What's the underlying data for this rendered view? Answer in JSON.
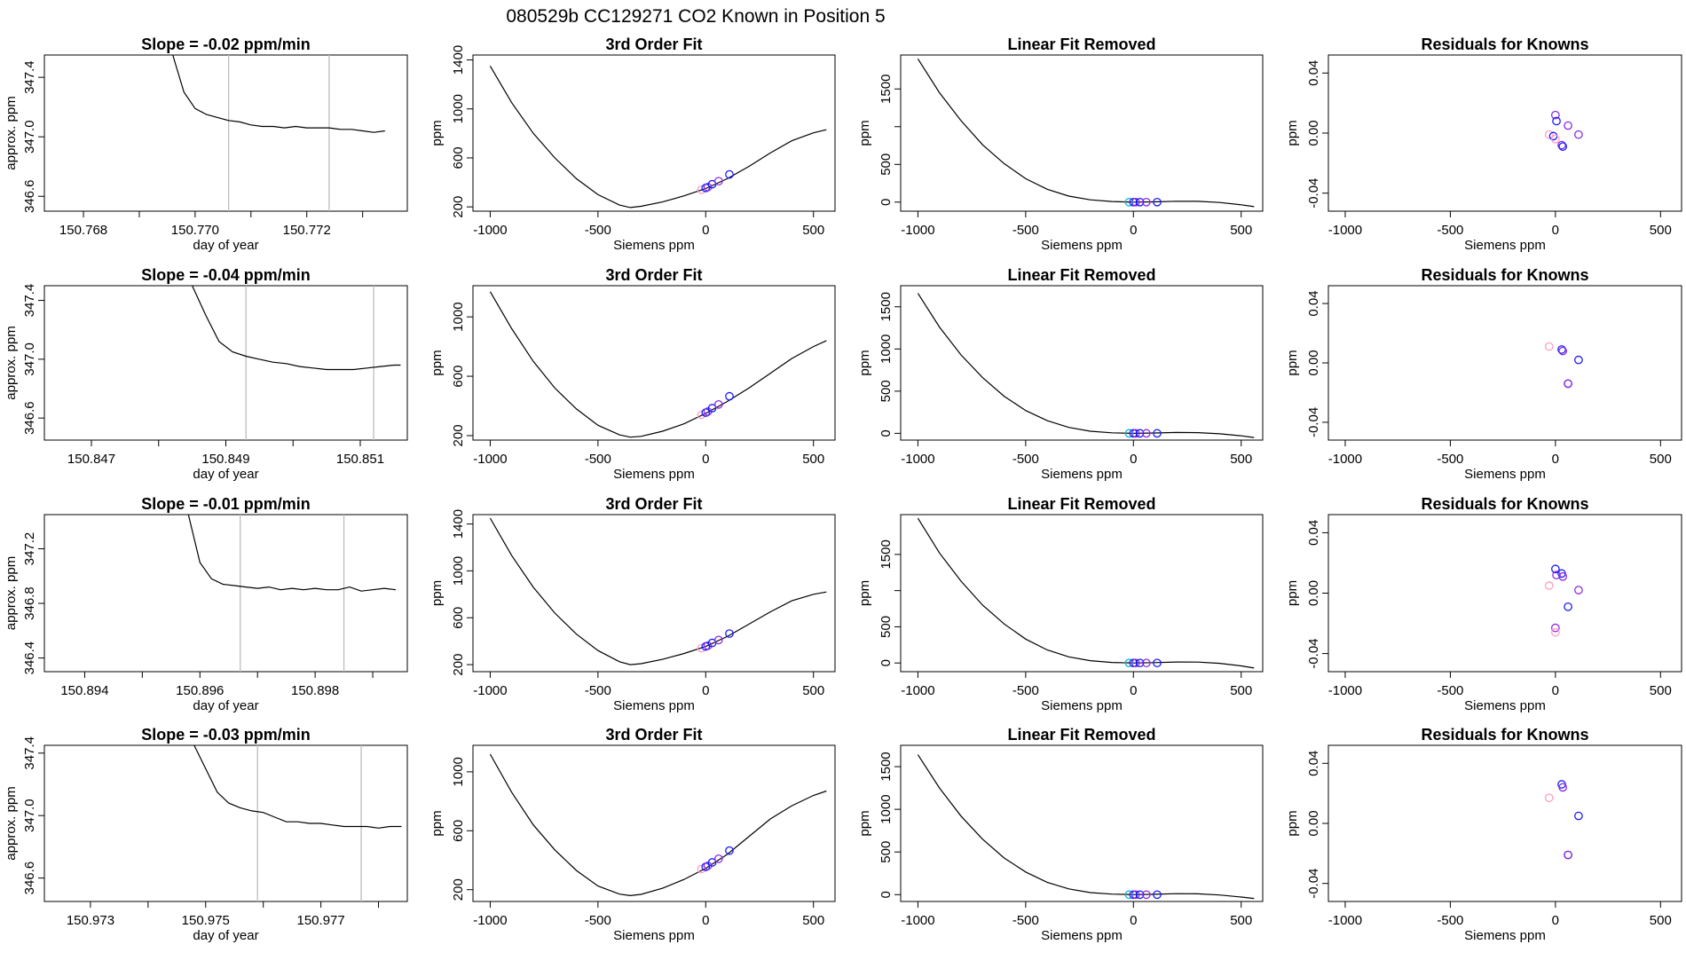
{
  "figure_title": "080529b      CC129271    CO2 Known in Position  5",
  "colors": {
    "curve": "#000000",
    "point_blue": "#1a1aff",
    "point_purple": "#8a2be2",
    "point_pink": "#ff9ec7",
    "point_cyan": "#00bcd4",
    "guide": "#bdbdbd"
  },
  "chart_data": [
    {
      "type": "line",
      "title": "Slope =  -0.02  ppm/min",
      "xlabel": "day of year",
      "ylabel": "approx. ppm",
      "xlim": [
        150.7673,
        150.7738
      ],
      "ylim": [
        346.5,
        347.55
      ],
      "xticks": [
        150.768,
        150.77,
        150.772
      ],
      "xtick_labels": [
        "150.768",
        "150.770",
        "150.772"
      ],
      "xticks_minor": [
        150.769,
        150.771,
        150.773
      ],
      "yticks": [
        346.6,
        347.0,
        347.4
      ],
      "ytick_labels": [
        "346.6",
        "347.0",
        "347.4"
      ],
      "vlines": [
        150.7706,
        150.7724
      ],
      "x": [
        150.7696,
        150.7698,
        150.77,
        150.7702,
        150.7704,
        150.7706,
        150.7708,
        150.771,
        150.7712,
        150.7714,
        150.7716,
        150.7718,
        150.772,
        150.7722,
        150.7724,
        150.7726,
        150.7728,
        150.773,
        150.7732,
        150.7734
      ],
      "y": [
        347.55,
        347.3,
        347.19,
        347.15,
        347.13,
        347.11,
        347.1,
        347.08,
        347.07,
        347.07,
        347.06,
        347.07,
        347.06,
        347.06,
        347.06,
        347.05,
        347.05,
        347.04,
        347.03,
        347.04
      ]
    },
    {
      "type": "line",
      "title": "3rd Order Fit",
      "xlabel": "Siemens ppm",
      "ylabel": "ppm",
      "xlim": [
        -1080,
        600
      ],
      "ylim": [
        165,
        1440
      ],
      "xticks": [
        -1000,
        -500,
        0,
        500
      ],
      "xtick_labels": [
        "-1000",
        "-500",
        "0",
        "500"
      ],
      "yticks": [
        200,
        600,
        1000,
        1400
      ],
      "ytick_labels": [
        "200",
        "600",
        "1000",
        "1400"
      ],
      "x": [
        -1000,
        -900,
        -800,
        -700,
        -600,
        -500,
        -400,
        -350,
        -300,
        -200,
        -100,
        0,
        100,
        200,
        300,
        400,
        500,
        560
      ],
      "y": [
        1350,
        1050,
        800,
        600,
        430,
        300,
        215,
        195,
        205,
        240,
        290,
        350,
        430,
        530,
        640,
        740,
        805,
        830
      ],
      "points_x": [
        -20,
        0,
        10,
        30,
        60,
        110
      ],
      "points_y": [
        340,
        355,
        362,
        385,
        410,
        465
      ]
    },
    {
      "type": "line",
      "title": "Linear Fit Removed",
      "xlabel": "Siemens ppm",
      "ylabel": "ppm",
      "xlim": [
        -1080,
        600
      ],
      "ylim": [
        -120,
        1950
      ],
      "xticks": [
        -1000,
        -500,
        0,
        500
      ],
      "xtick_labels": [
        "-1000",
        "-500",
        "0",
        "500"
      ],
      "yticks": [
        0,
        500,
        1500
      ],
      "ytick_labels": [
        "0",
        "500",
        "1500"
      ],
      "yticks_minor": [
        1000
      ],
      "x": [
        -1000,
        -900,
        -800,
        -700,
        -600,
        -500,
        -400,
        -300,
        -200,
        -100,
        0,
        100,
        200,
        300,
        400,
        500,
        560
      ],
      "y": [
        1900,
        1450,
        1080,
        760,
        510,
        310,
        170,
        80,
        30,
        8,
        0,
        4,
        12,
        10,
        -5,
        -35,
        -60
      ],
      "points_x": [
        -20,
        0,
        10,
        30,
        60,
        110
      ],
      "points_y": [
        0,
        0,
        0,
        0,
        0,
        0
      ]
    },
    {
      "type": "scatter",
      "title": "Residuals for Knowns",
      "xlabel": "Siemens ppm",
      "ylabel": "ppm",
      "xlim": [
        -1080,
        600
      ],
      "ylim": [
        -0.052,
        0.052
      ],
      "xticks": [
        -1000,
        -500,
        0,
        500
      ],
      "xtick_labels": [
        "-1000",
        "-500",
        "0",
        "500"
      ],
      "yticks": [
        -0.04,
        0.0,
        0.04
      ],
      "ytick_labels": [
        "-0.04",
        "0.00",
        "0.04"
      ],
      "points_x": [
        -30,
        -10,
        0,
        5,
        30,
        35,
        60,
        110,
        0
      ],
      "points_y": [
        -0.001,
        -0.002,
        0.012,
        0.008,
        -0.008,
        -0.009,
        0.005,
        -0.001,
        -0.004
      ]
    },
    {
      "type": "line",
      "title": "Slope =  -0.04  ppm/min",
      "xlabel": "day of year",
      "ylabel": "approx. ppm",
      "xlim": [
        150.8463,
        150.8517
      ],
      "ylim": [
        346.45,
        347.5
      ],
      "xticks": [
        150.847,
        150.849,
        150.851
      ],
      "xtick_labels": [
        "150.847",
        "150.849",
        "150.851"
      ],
      "xticks_minor": [
        150.848,
        150.85
      ],
      "yticks": [
        346.6,
        347.0,
        347.4
      ],
      "ytick_labels": [
        "346.6",
        "347.0",
        "347.4"
      ],
      "vlines": [
        150.8493,
        150.8512
      ],
      "x": [
        150.8485,
        150.8487,
        150.8489,
        150.8491,
        150.8493,
        150.8495,
        150.8497,
        150.8499,
        150.8501,
        150.8503,
        150.8505,
        150.8507,
        150.8509,
        150.8511,
        150.8513,
        150.8515,
        150.8516
      ],
      "y": [
        347.5,
        347.3,
        347.12,
        347.05,
        347.02,
        347.0,
        346.98,
        346.97,
        346.95,
        346.94,
        346.93,
        346.93,
        346.93,
        346.94,
        346.95,
        346.96,
        346.96
      ]
    },
    {
      "type": "line",
      "title": "3rd Order Fit",
      "xlabel": "Siemens ppm",
      "ylabel": "ppm",
      "xlim": [
        -1080,
        600
      ],
      "ylim": [
        170,
        1210
      ],
      "xticks": [
        -1000,
        -500,
        0,
        500
      ],
      "xtick_labels": [
        "-1000",
        "-500",
        "0",
        "500"
      ],
      "yticks": [
        200,
        600,
        1000
      ],
      "ytick_labels": [
        "200",
        "600",
        "1000"
      ],
      "x": [
        -1000,
        -900,
        -800,
        -700,
        -600,
        -500,
        -400,
        -350,
        -300,
        -200,
        -100,
        0,
        100,
        200,
        300,
        400,
        500,
        560
      ],
      "y": [
        1170,
        920,
        700,
        520,
        380,
        270,
        205,
        190,
        195,
        230,
        280,
        350,
        430,
        520,
        620,
        720,
        800,
        840
      ],
      "points_x": [
        -20,
        0,
        10,
        30,
        60,
        110
      ],
      "points_y": [
        340,
        355,
        362,
        385,
        410,
        465
      ]
    },
    {
      "type": "line",
      "title": "Linear Fit Removed",
      "xlabel": "Siemens ppm",
      "ylabel": "ppm",
      "xlim": [
        -1080,
        600
      ],
      "ylim": [
        -80,
        1750
      ],
      "xticks": [
        -1000,
        -500,
        0,
        500
      ],
      "xtick_labels": [
        "-1000",
        "-500",
        "0",
        "500"
      ],
      "yticks": [
        0,
        500,
        1000,
        1500
      ],
      "ytick_labels": [
        "0",
        "500",
        "1000",
        "1500"
      ],
      "x": [
        -1000,
        -900,
        -800,
        -700,
        -600,
        -500,
        -400,
        -300,
        -200,
        -100,
        0,
        100,
        200,
        300,
        400,
        500,
        560
      ],
      "y": [
        1660,
        1260,
        930,
        660,
        440,
        270,
        150,
        70,
        25,
        6,
        0,
        4,
        10,
        8,
        -5,
        -30,
        -50
      ],
      "points_x": [
        -20,
        0,
        10,
        30,
        60,
        110
      ],
      "points_y": [
        0,
        0,
        0,
        0,
        0,
        0
      ]
    },
    {
      "type": "scatter",
      "title": "Residuals for Knowns",
      "xlabel": "Siemens ppm",
      "ylabel": "ppm",
      "xlim": [
        -1080,
        600
      ],
      "ylim": [
        -0.052,
        0.052
      ],
      "xticks": [
        -1000,
        -500,
        0,
        500
      ],
      "xtick_labels": [
        "-1000",
        "-500",
        "0",
        "500"
      ],
      "yticks": [
        -0.04,
        0.0,
        0.04
      ],
      "ytick_labels": [
        "-0.04",
        "0.00",
        "0.04"
      ],
      "points_x": [
        -30,
        30,
        35,
        60,
        60,
        110
      ],
      "points_y": [
        0.011,
        0.009,
        0.008,
        -0.014,
        -0.014,
        0.002
      ]
    },
    {
      "type": "line",
      "title": "Slope =  -0.01  ppm/min",
      "xlabel": "day of year",
      "ylabel": "approx. ppm",
      "xlim": [
        150.8933,
        150.8996
      ],
      "ylim": [
        346.3,
        347.45
      ],
      "xticks": [
        150.894,
        150.896,
        150.898
      ],
      "xtick_labels": [
        "150.894",
        "150.896",
        "150.898"
      ],
      "xticks_minor": [
        150.895,
        150.897,
        150.899
      ],
      "yticks": [
        346.4,
        346.8,
        347.2
      ],
      "ytick_labels": [
        "346.4",
        "346.8",
        "347.2"
      ],
      "vlines": [
        150.8967,
        150.8985
      ],
      "x": [
        150.8958,
        150.896,
        150.8962,
        150.8964,
        150.8966,
        150.8968,
        150.897,
        150.8972,
        150.8974,
        150.8976,
        150.8978,
        150.898,
        150.8982,
        150.8984,
        150.8986,
        150.8988,
        150.899,
        150.8992,
        150.8994
      ],
      "y": [
        347.45,
        347.1,
        346.98,
        346.94,
        346.93,
        346.92,
        346.91,
        346.92,
        346.9,
        346.91,
        346.9,
        346.91,
        346.9,
        346.9,
        346.92,
        346.89,
        346.9,
        346.91,
        346.9
      ]
    },
    {
      "type": "line",
      "title": "3rd Order Fit",
      "xlabel": "Siemens ppm",
      "ylabel": "ppm",
      "xlim": [
        -1080,
        600
      ],
      "ylim": [
        140,
        1480
      ],
      "xticks": [
        -1000,
        -500,
        0,
        500
      ],
      "xtick_labels": [
        "-1000",
        "-500",
        "0",
        "500"
      ],
      "yticks": [
        200,
        600,
        1000,
        1400
      ],
      "ytick_labels": [
        "200",
        "600",
        "1000",
        "1400"
      ],
      "x": [
        -1000,
        -900,
        -800,
        -700,
        -600,
        -500,
        -400,
        -350,
        -300,
        -200,
        -100,
        0,
        100,
        200,
        300,
        400,
        500,
        560
      ],
      "y": [
        1450,
        1130,
        860,
        640,
        460,
        320,
        225,
        200,
        208,
        245,
        295,
        355,
        440,
        545,
        650,
        745,
        800,
        820
      ],
      "points_x": [
        -20,
        0,
        10,
        30,
        60,
        110
      ],
      "points_y": [
        340,
        355,
        362,
        385,
        410,
        465
      ]
    },
    {
      "type": "line",
      "title": "Linear Fit Removed",
      "xlabel": "Siemens ppm",
      "ylabel": "ppm",
      "xlim": [
        -1080,
        600
      ],
      "ylim": [
        -120,
        2050
      ],
      "xticks": [
        -1000,
        -500,
        0,
        500
      ],
      "xtick_labels": [
        "-1000",
        "-500",
        "0",
        "500"
      ],
      "yticks": [
        0,
        500,
        1500
      ],
      "ytick_labels": [
        "0",
        "500",
        "1500"
      ],
      "yticks_minor": [
        1000
      ],
      "x": [
        -1000,
        -900,
        -800,
        -700,
        -600,
        -500,
        -400,
        -300,
        -200,
        -100,
        0,
        100,
        200,
        300,
        400,
        500,
        560
      ],
      "y": [
        2000,
        1520,
        1130,
        800,
        540,
        330,
        180,
        85,
        32,
        8,
        0,
        5,
        14,
        12,
        -5,
        -40,
        -70
      ],
      "points_x": [
        -20,
        0,
        10,
        30,
        60,
        110
      ],
      "points_y": [
        0,
        0,
        0,
        0,
        0,
        0
      ]
    },
    {
      "type": "scatter",
      "title": "Residuals for Knowns",
      "xlabel": "Siemens ppm",
      "ylabel": "ppm",
      "xlim": [
        -1080,
        600
      ],
      "ylim": [
        -0.052,
        0.052
      ],
      "xticks": [
        -1000,
        -500,
        0,
        500
      ],
      "xtick_labels": [
        "-1000",
        "-500",
        "0",
        "500"
      ],
      "yticks": [
        -0.04,
        0.0,
        0.04
      ],
      "ytick_labels": [
        "-0.04",
        "0.00",
        "0.04"
      ],
      "points_x": [
        -30,
        0,
        5,
        30,
        35,
        60,
        110,
        0,
        0
      ],
      "points_y": [
        0.005,
        0.016,
        0.012,
        0.013,
        0.011,
        -0.009,
        0.002,
        -0.023,
        -0.026
      ]
    },
    {
      "type": "line",
      "title": "Slope =  -0.03  ppm/min",
      "xlabel": "day of year",
      "ylabel": "approx. ppm",
      "xlim": [
        150.9722,
        150.9785
      ],
      "ylim": [
        346.45,
        347.45
      ],
      "xticks": [
        150.973,
        150.975,
        150.977
      ],
      "xtick_labels": [
        "150.973",
        "150.975",
        "150.977"
      ],
      "xticks_minor": [
        150.974,
        150.976,
        150.978
      ],
      "yticks": [
        346.6,
        347.0,
        347.4
      ],
      "ytick_labels": [
        "346.6",
        "347.0",
        "347.4"
      ],
      "vlines": [
        150.9759,
        150.9777
      ],
      "x": [
        150.9748,
        150.975,
        150.9752,
        150.9754,
        150.9756,
        150.9758,
        150.976,
        150.9762,
        150.9764,
        150.9766,
        150.9768,
        150.977,
        150.9772,
        150.9774,
        150.9776,
        150.9778,
        150.978,
        150.9782,
        150.9784
      ],
      "y": [
        347.45,
        347.3,
        347.15,
        347.08,
        347.05,
        347.03,
        347.02,
        346.99,
        346.96,
        346.96,
        346.95,
        346.95,
        346.94,
        346.93,
        346.93,
        346.93,
        346.92,
        346.93,
        346.93
      ]
    },
    {
      "type": "line",
      "title": "3rd Order Fit",
      "xlabel": "Siemens ppm",
      "ylabel": "ppm",
      "xlim": [
        -1080,
        600
      ],
      "ylim": [
        120,
        1180
      ],
      "xticks": [
        -1000,
        -500,
        0,
        500
      ],
      "xtick_labels": [
        "-1000",
        "-500",
        "0",
        "500"
      ],
      "yticks": [
        200,
        600,
        1000
      ],
      "ytick_labels": [
        "200",
        "600",
        "1000"
      ],
      "x": [
        -1000,
        -900,
        -800,
        -700,
        -600,
        -500,
        -400,
        -350,
        -300,
        -200,
        -100,
        0,
        100,
        200,
        300,
        400,
        500,
        560
      ],
      "y": [
        1120,
        860,
        640,
        470,
        330,
        225,
        170,
        160,
        168,
        210,
        270,
        345,
        440,
        560,
        680,
        770,
        840,
        870
      ],
      "points_x": [
        -20,
        0,
        10,
        30,
        60,
        110
      ],
      "points_y": [
        340,
        355,
        362,
        385,
        410,
        465
      ]
    },
    {
      "type": "line",
      "title": "Linear Fit Removed",
      "xlabel": "Siemens ppm",
      "ylabel": "ppm",
      "xlim": [
        -1080,
        600
      ],
      "ylim": [
        -80,
        1750
      ],
      "xticks": [
        -1000,
        -500,
        0,
        500
      ],
      "xtick_labels": [
        "-1000",
        "-500",
        "0",
        "500"
      ],
      "yticks": [
        0,
        500,
        1000,
        1500
      ],
      "ytick_labels": [
        "0",
        "500",
        "1000",
        "1500"
      ],
      "x": [
        -1000,
        -900,
        -800,
        -700,
        -600,
        -500,
        -400,
        -300,
        -200,
        -100,
        0,
        100,
        200,
        300,
        400,
        500,
        560
      ],
      "y": [
        1640,
        1250,
        920,
        650,
        430,
        265,
        145,
        68,
        24,
        6,
        0,
        4,
        11,
        9,
        -4,
        -28,
        -45
      ],
      "points_x": [
        -20,
        0,
        10,
        30,
        60,
        110
      ],
      "points_y": [
        0,
        0,
        0,
        0,
        0,
        0
      ]
    },
    {
      "type": "scatter",
      "title": "Residuals for Knowns",
      "xlabel": "Siemens ppm",
      "ylabel": "ppm",
      "xlim": [
        -1080,
        600
      ],
      "ylim": [
        -0.052,
        0.052
      ],
      "xticks": [
        -1000,
        -500,
        0,
        500
      ],
      "xtick_labels": [
        "-1000",
        "-500",
        "0",
        "500"
      ],
      "yticks": [
        -0.04,
        0.0,
        0.04
      ],
      "ytick_labels": [
        "-0.04",
        "0.00",
        "0.04"
      ],
      "points_x": [
        -30,
        30,
        35,
        60,
        60,
        110
      ],
      "points_y": [
        0.017,
        0.026,
        0.024,
        -0.021,
        -0.021,
        0.005
      ]
    }
  ]
}
